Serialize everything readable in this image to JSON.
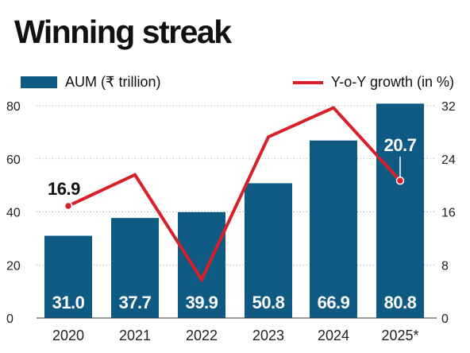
{
  "chart_data": {
    "type": "bar",
    "title": "Winning streak",
    "categories": [
      "2020",
      "2021",
      "2022",
      "2023",
      "2024",
      "2025*"
    ],
    "series": [
      {
        "name": "AUM (₹ trillion)",
        "type": "bar",
        "axis": "left",
        "values": [
          31.0,
          37.7,
          39.9,
          50.8,
          66.9,
          80.8
        ],
        "labels": [
          "31.0",
          "37.7",
          "39.9",
          "50.8",
          "66.9",
          "80.8"
        ],
        "color": "#0e5a83"
      },
      {
        "name": "Y-o-Y growth (in %)",
        "type": "line",
        "axis": "right",
        "values": [
          16.9,
          21.6,
          5.8,
          27.3,
          31.7,
          20.7
        ],
        "labels": [
          "16.9",
          "",
          "",
          "",
          "",
          "20.7"
        ],
        "color": "#d8202a"
      }
    ],
    "y_left": {
      "ylim": [
        0,
        80
      ],
      "ticks": [
        "0",
        "20",
        "40",
        "60",
        "80"
      ]
    },
    "y_right": {
      "ylim": [
        0,
        32
      ],
      "ticks": [
        "0",
        "8",
        "16",
        "24",
        "32"
      ]
    },
    "grid": true,
    "legend": "top"
  }
}
